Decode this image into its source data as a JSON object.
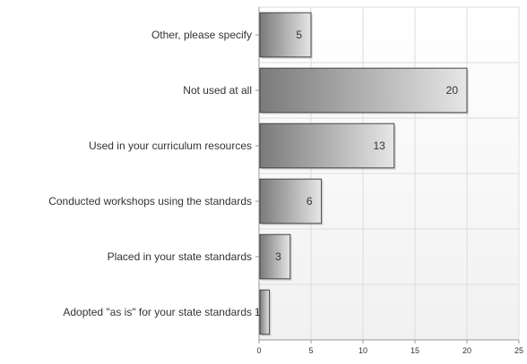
{
  "chart_data": {
    "type": "bar",
    "orientation": "horizontal",
    "categories": [
      "Other, please specify",
      "Not used at all",
      "Used in your curriculum resources",
      "Conducted workshops using the standards",
      "Placed in your state standards",
      "Adopted \"as is\" for your state standards"
    ],
    "values": [
      5,
      20,
      13,
      6,
      3,
      1
    ],
    "xlim": [
      0,
      25
    ],
    "x_ticks": [
      "0",
      "5",
      "10",
      "15",
      "20",
      "25"
    ],
    "value_labels": [
      "5",
      "20",
      "13",
      "6",
      "3",
      "1"
    ],
    "grid": true,
    "colors": {
      "bar_dark": "#7a7a7a",
      "bar_light": "#e6e6e6",
      "bar_border": "#444444",
      "grid": "#dcdcdc",
      "axis": "#999999",
      "label_text": "#333333",
      "value_text": "#333333",
      "plot_bg_top": "#ffffff",
      "plot_bg_bottom": "#f1f1f1"
    }
  }
}
